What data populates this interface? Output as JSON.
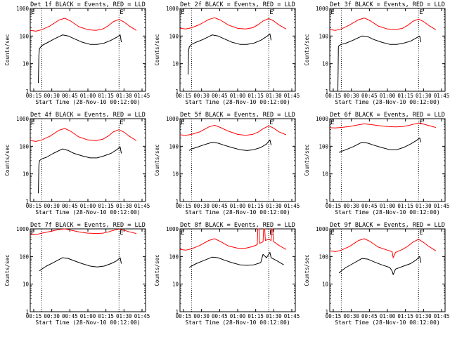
{
  "figure": {
    "ylabel": "Counts/sec",
    "xlabel": "Start Time (28-Nov-10 00:12:00)",
    "x_ticks": [
      "00:15",
      "00:30",
      "00:45",
      "01:00",
      "01:15",
      "01:30",
      "01:45"
    ],
    "y_ticks": [
      "1",
      "10",
      "100",
      "1000"
    ],
    "marker_letter": "E",
    "colors": {
      "events": "#000000",
      "lld": "#ff0000",
      "axes": "#000000"
    }
  },
  "chart_data": [
    {
      "type": "line",
      "title": "Det 1f BLACK = Events, RED = LLD",
      "xlabel": "Start Time (28-Nov-10 00:12:00)",
      "ylabel": "Counts/sec",
      "xlim": [
        0,
        100
      ],
      "ylim": [
        1,
        1000
      ],
      "yscale": "log",
      "markers": [
        {
          "x": 10,
          "label": ""
        },
        {
          "x": 77,
          "label": "E"
        }
      ],
      "series": [
        {
          "name": "LLD",
          "color": "#ff0000",
          "x": [
            0,
            5,
            10,
            17,
            25,
            30,
            35,
            42,
            50,
            57,
            63,
            68,
            72,
            77,
            81,
            86,
            92
          ],
          "y": [
            160,
            150,
            170,
            230,
            380,
            440,
            350,
            220,
            170,
            160,
            180,
            240,
            330,
            400,
            330,
            230,
            160
          ]
        },
        {
          "name": "Events",
          "color": "#000000",
          "x": [
            7,
            7.5,
            8,
            10,
            14,
            20,
            28,
            33,
            38,
            45,
            52,
            58,
            64,
            70,
            75,
            78,
            79
          ],
          "y": [
            2,
            20,
            35,
            45,
            55,
            75,
            110,
            100,
            80,
            60,
            50,
            50,
            55,
            70,
            90,
            110,
            60
          ]
        }
      ]
    },
    {
      "type": "line",
      "title": "Det 2f BLACK = Events, RED = LLD",
      "xlabel": "Start Time (28-Nov-10 00:12:00)",
      "ylabel": "Counts/sec",
      "xlim": [
        0,
        100
      ],
      "ylim": [
        1,
        1000
      ],
      "yscale": "log",
      "markers": [
        {
          "x": 10,
          "label": ""
        },
        {
          "x": 77,
          "label": "E"
        }
      ],
      "series": [
        {
          "name": "LLD",
          "color": "#ff0000",
          "x": [
            0,
            5,
            10,
            17,
            25,
            30,
            35,
            42,
            50,
            57,
            63,
            68,
            72,
            77,
            81,
            86,
            92
          ],
          "y": [
            190,
            180,
            200,
            260,
            400,
            460,
            380,
            250,
            190,
            180,
            200,
            260,
            350,
            430,
            360,
            250,
            180
          ]
        },
        {
          "name": "Events",
          "color": "#000000",
          "x": [
            7,
            7.5,
            8,
            10,
            14,
            20,
            28,
            33,
            38,
            45,
            52,
            58,
            64,
            70,
            75,
            78,
            79
          ],
          "y": [
            4,
            30,
            40,
            50,
            60,
            75,
            110,
            100,
            80,
            60,
            50,
            50,
            55,
            70,
            95,
            120,
            70
          ]
        }
      ]
    },
    {
      "type": "line",
      "title": "Det 3f BLACK = Events, RED = LLD",
      "xlabel": "Start Time (28-Nov-10 00:12:00)",
      "ylabel": "Counts/sec",
      "xlim": [
        0,
        100
      ],
      "ylim": [
        1,
        1000
      ],
      "yscale": "log",
      "markers": [
        {
          "x": 10,
          "label": ""
        },
        {
          "x": 77,
          "label": "E"
        }
      ],
      "series": [
        {
          "name": "LLD",
          "color": "#ff0000",
          "x": [
            0,
            5,
            10,
            17,
            25,
            30,
            35,
            42,
            50,
            57,
            63,
            68,
            72,
            77,
            81,
            86,
            92
          ],
          "y": [
            170,
            160,
            180,
            250,
            390,
            450,
            360,
            230,
            180,
            170,
            190,
            250,
            340,
            410,
            340,
            240,
            170
          ]
        },
        {
          "name": "Events",
          "color": "#000000",
          "x": [
            7,
            7.5,
            8,
            10,
            14,
            20,
            28,
            33,
            38,
            45,
            52,
            58,
            64,
            70,
            75,
            78,
            79
          ],
          "y": [
            1,
            40,
            45,
            50,
            55,
            70,
            100,
            95,
            75,
            60,
            50,
            50,
            55,
            65,
            85,
            100,
            60
          ]
        }
      ]
    },
    {
      "type": "line",
      "title": "Det 4f BLACK = Events, RED = LLD",
      "xlabel": "Start Time (28-Nov-10 00:12:00)",
      "ylabel": "Counts/sec",
      "xlim": [
        0,
        100
      ],
      "ylim": [
        1,
        1000
      ],
      "yscale": "log",
      "markers": [
        {
          "x": 10,
          "label": ""
        },
        {
          "x": 77,
          "label": "E"
        }
      ],
      "series": [
        {
          "name": "LLD",
          "color": "#ff0000",
          "x": [
            0,
            5,
            10,
            17,
            25,
            30,
            35,
            42,
            50,
            57,
            63,
            68,
            72,
            77,
            81,
            86,
            92
          ],
          "y": [
            160,
            150,
            170,
            230,
            380,
            440,
            350,
            220,
            170,
            160,
            180,
            240,
            330,
            400,
            330,
            230,
            160
          ]
        },
        {
          "name": "Events",
          "color": "#000000",
          "x": [
            7,
            7.5,
            8,
            10,
            14,
            20,
            28,
            33,
            38,
            45,
            52,
            58,
            64,
            70,
            75,
            78,
            79
          ],
          "y": [
            2,
            20,
            30,
            35,
            40,
            55,
            80,
            70,
            55,
            45,
            38,
            38,
            45,
            55,
            75,
            95,
            55
          ]
        }
      ]
    },
    {
      "type": "line",
      "title": "Det 5f BLACK = Events, RED = LLD",
      "xlabel": "Start Time (28-Nov-10 00:12:00)",
      "ylabel": "Counts/sec",
      "xlim": [
        0,
        100
      ],
      "ylim": [
        1,
        1000
      ],
      "yscale": "log",
      "markers": [
        {
          "x": 10,
          "label": ""
        },
        {
          "x": 77,
          "label": "E"
        }
      ],
      "series": [
        {
          "name": "LLD",
          "color": "#ff0000",
          "x": [
            0,
            5,
            10,
            17,
            25,
            30,
            35,
            42,
            50,
            57,
            63,
            68,
            72,
            77,
            81,
            86,
            92
          ],
          "y": [
            260,
            250,
            270,
            330,
            500,
            580,
            480,
            350,
            270,
            250,
            270,
            330,
            430,
            550,
            460,
            330,
            260
          ]
        },
        {
          "name": "Events",
          "color": "#000000",
          "x": [
            8,
            10,
            14,
            20,
            28,
            33,
            38,
            45,
            52,
            58,
            64,
            70,
            75,
            78,
            79
          ],
          "y": [
            70,
            80,
            90,
            110,
            140,
            130,
            110,
            90,
            75,
            70,
            75,
            90,
            120,
            170,
            110
          ]
        }
      ]
    },
    {
      "type": "line",
      "title": "Det 6f BLACK = Events, RED = LLD",
      "xlabel": "Start Time (28-Nov-10 00:12:00)",
      "ylabel": "Counts/sec",
      "xlim": [
        0,
        100
      ],
      "ylim": [
        1,
        1000
      ],
      "yscale": "log",
      "markers": [
        {
          "x": 10,
          "label": ""
        },
        {
          "x": 77,
          "label": "E"
        }
      ],
      "series": [
        {
          "name": "LLD",
          "color": "#ff0000",
          "x": [
            0,
            5,
            10,
            17,
            25,
            30,
            35,
            42,
            50,
            57,
            63,
            68,
            72,
            77,
            81,
            86,
            92
          ],
          "y": [
            470,
            460,
            480,
            520,
            600,
            650,
            620,
            560,
            520,
            500,
            520,
            560,
            620,
            700,
            640,
            560,
            480
          ]
        },
        {
          "name": "Events",
          "color": "#000000",
          "x": [
            8,
            10,
            14,
            20,
            28,
            33,
            38,
            45,
            52,
            58,
            64,
            70,
            75,
            78,
            79
          ],
          "y": [
            60,
            65,
            75,
            95,
            140,
            130,
            110,
            90,
            75,
            75,
            90,
            120,
            160,
            200,
            140
          ]
        }
      ]
    },
    {
      "type": "line",
      "title": "Det 7f BLACK = Events, RED = LLD",
      "xlabel": "Start Time (28-Nov-10 00:12:00)",
      "ylabel": "Counts/sec",
      "xlim": [
        0,
        100
      ],
      "ylim": [
        1,
        1000
      ],
      "yscale": "log",
      "markers": [
        {
          "x": 10,
          "label": ""
        },
        {
          "x": 77,
          "label": "E"
        }
      ],
      "series": [
        {
          "name": "LLD",
          "color": "#ff0000",
          "x": [
            0,
            5,
            10,
            17,
            25,
            30,
            35,
            42,
            50,
            57,
            63,
            68,
            72,
            77,
            81,
            86,
            92
          ],
          "y": [
            650,
            620,
            700,
            800,
            950,
            1000,
            900,
            780,
            700,
            680,
            700,
            780,
            880,
            980,
            900,
            780,
            680
          ]
        },
        {
          "name": "Events",
          "color": "#000000",
          "x": [
            8,
            10,
            14,
            20,
            28,
            33,
            38,
            45,
            52,
            58,
            64,
            70,
            75,
            78,
            79
          ],
          "y": [
            30,
            35,
            45,
            60,
            90,
            85,
            70,
            55,
            45,
            42,
            45,
            55,
            70,
            90,
            55
          ]
        }
      ]
    },
    {
      "type": "line",
      "title": "Det 8f BLACK = Events, RED = LLD",
      "xlabel": "Start Time (28-Nov-10 00:12:00)",
      "ylabel": "Counts/sec",
      "xlim": [
        0,
        100
      ],
      "ylim": [
        1,
        1000
      ],
      "yscale": "log",
      "markers": [
        {
          "x": 10,
          "label": ""
        },
        {
          "x": 77,
          "label": "E"
        }
      ],
      "series": [
        {
          "name": "LLD",
          "color": "#ff0000",
          "x": [
            0,
            5,
            10,
            17,
            25,
            30,
            35,
            42,
            50,
            57,
            63,
            67,
            67.5,
            68.5,
            69,
            72,
            72.5,
            73.5,
            74,
            77,
            79,
            79.5,
            80.5,
            81,
            86,
            92
          ],
          "y": [
            180,
            170,
            190,
            250,
            380,
            440,
            350,
            240,
            200,
            200,
            230,
            270,
            1000,
            1000,
            300,
            340,
            1000,
            1000,
            380,
            420,
            380,
            1000,
            1000,
            350,
            250,
            180
          ]
        },
        {
          "name": "Events",
          "color": "#000000",
          "x": [
            8,
            10,
            14,
            20,
            28,
            33,
            38,
            45,
            52,
            58,
            64,
            70,
            72,
            75,
            78,
            79,
            84,
            90
          ],
          "y": [
            40,
            45,
            55,
            70,
            95,
            90,
            75,
            60,
            50,
            48,
            50,
            60,
            120,
            90,
            140,
            90,
            70,
            50
          ]
        }
      ]
    },
    {
      "type": "line",
      "title": "Det 9f BLACK = Events, RED = LLD",
      "xlabel": "Start Time (28-Nov-10 00:12:00)",
      "ylabel": "Counts/sec",
      "xlim": [
        0,
        100
      ],
      "ylim": [
        1,
        1000
      ],
      "yscale": "log",
      "markers": [
        {
          "x": 10,
          "label": ""
        },
        {
          "x": 77,
          "label": "E"
        }
      ],
      "series": [
        {
          "name": "LLD",
          "color": "#ff0000",
          "x": [
            0,
            5,
            10,
            17,
            25,
            30,
            35,
            42,
            50,
            54,
            55,
            57,
            63,
            68,
            72,
            77,
            81,
            86,
            92
          ],
          "y": [
            160,
            150,
            170,
            230,
            380,
            440,
            350,
            220,
            170,
            150,
            90,
            140,
            180,
            240,
            330,
            420,
            330,
            230,
            160
          ]
        },
        {
          "name": "Events",
          "color": "#000000",
          "x": [
            8,
            10,
            14,
            20,
            28,
            33,
            38,
            45,
            52,
            54,
            55,
            57,
            64,
            70,
            75,
            78,
            79
          ],
          "y": [
            25,
            30,
            40,
            55,
            85,
            80,
            65,
            50,
            40,
            30,
            22,
            35,
            45,
            55,
            75,
            100,
            60
          ]
        }
      ]
    }
  ]
}
